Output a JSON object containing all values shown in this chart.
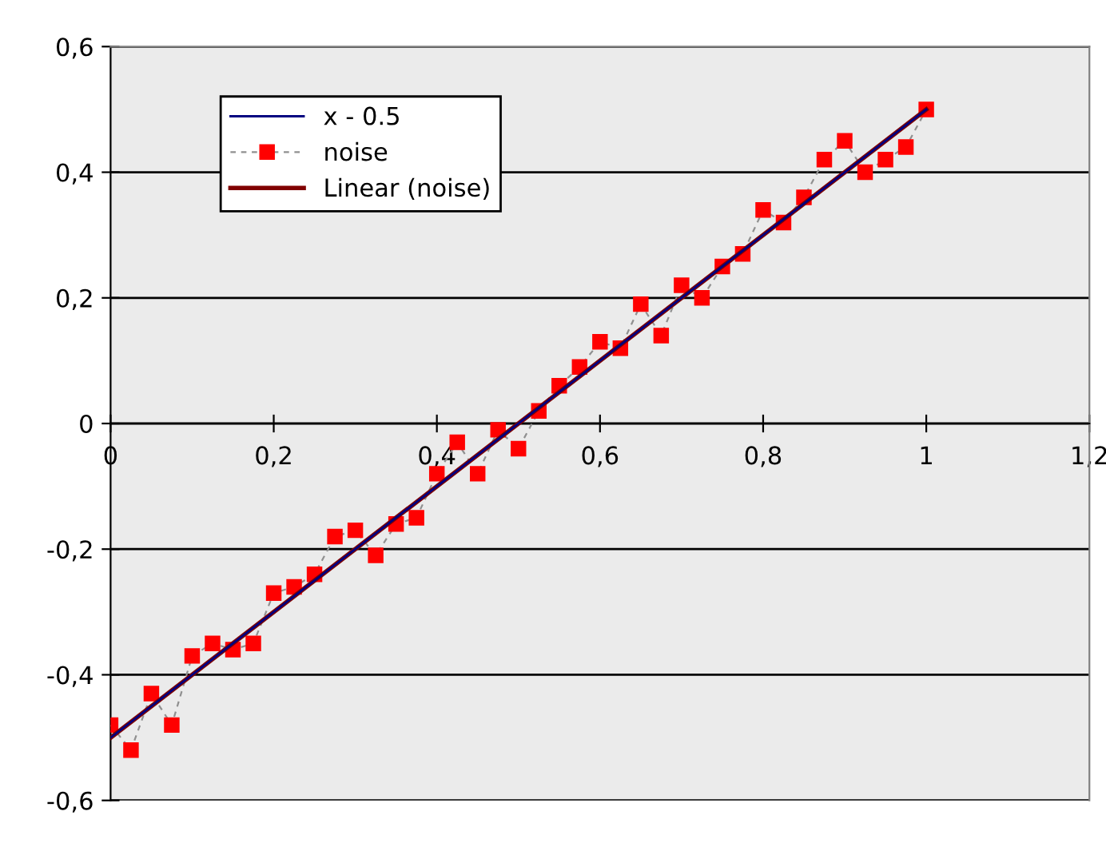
{
  "chart_data": {
    "type": "line",
    "xlim": [
      0,
      1.2
    ],
    "ylim": [
      -0.6,
      0.6
    ],
    "xticks": [
      0,
      {
        "value": 0.2,
        "label": "0,2"
      },
      {
        "value": 0.4,
        "label": "0,4"
      },
      {
        "value": 0.6,
        "label": "0,6"
      },
      {
        "value": 0.8,
        "label": "0,8"
      },
      1,
      {
        "value": 1.2,
        "label": "1,2"
      }
    ],
    "yticks": [
      {
        "value": -0.6,
        "label": "-0,6"
      },
      {
        "value": -0.4,
        "label": "-0,4"
      },
      {
        "value": -0.2,
        "label": "-0,2"
      },
      0,
      {
        "value": 0.2,
        "label": "0,2"
      },
      {
        "value": 0.4,
        "label": "0,4"
      },
      {
        "value": 0.6,
        "label": "0,6"
      }
    ],
    "grid": "y",
    "legend": "top left",
    "series": [
      {
        "name": "x - 0.5",
        "color": "#000080",
        "marker": "none",
        "line_style": "solid",
        "x": [
          0,
          1
        ],
        "values": [
          -0.5,
          0.5
        ]
      },
      {
        "name": "noise",
        "color": "#ff0000",
        "marker": "square",
        "line_style": "dashed",
        "x": [
          0,
          0.025,
          0.05,
          0.075,
          0.1,
          0.125,
          0.15,
          0.175,
          0.2,
          0.225,
          0.25,
          0.275,
          0.3,
          0.325,
          0.35,
          0.375,
          0.4,
          0.425,
          0.45,
          0.475,
          0.5,
          0.525,
          0.55,
          0.575,
          0.6,
          0.625,
          0.65,
          0.675,
          0.7,
          0.725,
          0.75,
          0.775,
          0.8,
          0.825,
          0.85,
          0.875,
          0.9,
          0.925,
          0.95,
          0.975,
          1
        ],
        "values": [
          -0.48,
          -0.52,
          -0.43,
          -0.48,
          -0.37,
          -0.35,
          -0.36,
          -0.35,
          -0.27,
          -0.26,
          -0.24,
          -0.18,
          -0.17,
          -0.21,
          -0.16,
          -0.15,
          -0.08,
          -0.03,
          -0.08,
          -0.01,
          -0.04,
          0.02,
          0.06,
          0.09,
          0.13,
          0.12,
          0.19,
          0.14,
          0.22,
          0.2,
          0.25,
          0.27,
          0.34,
          0.32,
          0.36,
          0.42,
          0.45,
          0.4,
          0.42,
          0.44,
          0.5
        ]
      },
      {
        "name": "Linear (noise)",
        "color": "#800000",
        "marker": "none",
        "line_style": "solid",
        "x": [
          0,
          1
        ],
        "values": [
          -0.5,
          0.5
        ]
      }
    ]
  }
}
